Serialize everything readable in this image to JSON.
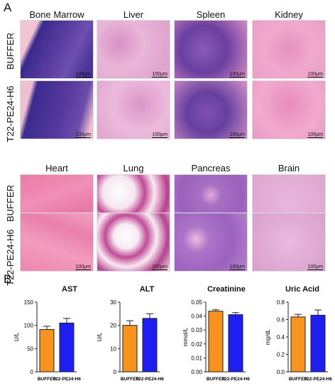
{
  "panel_a": {
    "letter": "A",
    "top": {
      "tissues": [
        "Bone Marrow",
        "Liver",
        "Spleen",
        "Kidney"
      ],
      "rows": [
        "BUFFER",
        "T22-PE24-H6"
      ]
    },
    "bottom": {
      "tissues": [
        "Heart",
        "Lung",
        "Pancreas",
        "Brain"
      ],
      "rows": [
        "BUFFER",
        "T22-PE24-H6"
      ]
    },
    "scale_bar": "100μm"
  },
  "panel_b": {
    "letter": "B",
    "colors": {
      "buffer": "#F7931E",
      "treated": "#1E1EF0"
    },
    "chart_data": [
      {
        "type": "bar",
        "title": "AST",
        "ylabel": "U/L",
        "categories": [
          "BUFFER",
          "T22-PE24-H6"
        ],
        "values": [
          91,
          105
        ],
        "errors": [
          7,
          10
        ],
        "ylim": [
          0,
          150
        ],
        "yticks": [
          "0",
          "50",
          "100",
          "150"
        ],
        "tick_values": [
          0,
          50,
          100,
          150
        ]
      },
      {
        "type": "bar",
        "title": "ALT",
        "ylabel": "U/L",
        "categories": [
          "BUFFER",
          "T22-PE24-H6"
        ],
        "values": [
          20,
          23
        ],
        "errors": [
          2,
          2
        ],
        "ylim": [
          0,
          30
        ],
        "yticks": [
          "0",
          "10",
          "20",
          "30"
        ],
        "tick_values": [
          0,
          10,
          20,
          30
        ]
      },
      {
        "type": "bar",
        "title": "Creatinine",
        "ylabel": "mmol/L",
        "categories": [
          "BUFFER",
          "T22-PE24-H6"
        ],
        "values": [
          0.0435,
          0.041
        ],
        "errors": [
          0.001,
          0.0015
        ],
        "ylim": [
          0,
          0.05
        ],
        "yticks": [
          "0.00",
          "0.01",
          "0.02",
          "0.03",
          "0.04",
          "0.05"
        ],
        "tick_values": [
          0,
          0.01,
          0.02,
          0.03,
          0.04,
          0.05
        ]
      },
      {
        "type": "bar",
        "title": "Uric Acid",
        "ylabel": "mg/dL",
        "categories": [
          "BUFFER",
          "T22-PE24-H6"
        ],
        "values": [
          0.63,
          0.65
        ],
        "errors": [
          0.03,
          0.06
        ],
        "ylim": [
          0,
          0.8
        ],
        "yticks": [
          "0.0",
          "0.2",
          "0.4",
          "0.6",
          "0.8"
        ],
        "tick_values": [
          0,
          0.2,
          0.4,
          0.6,
          0.8
        ]
      }
    ]
  }
}
